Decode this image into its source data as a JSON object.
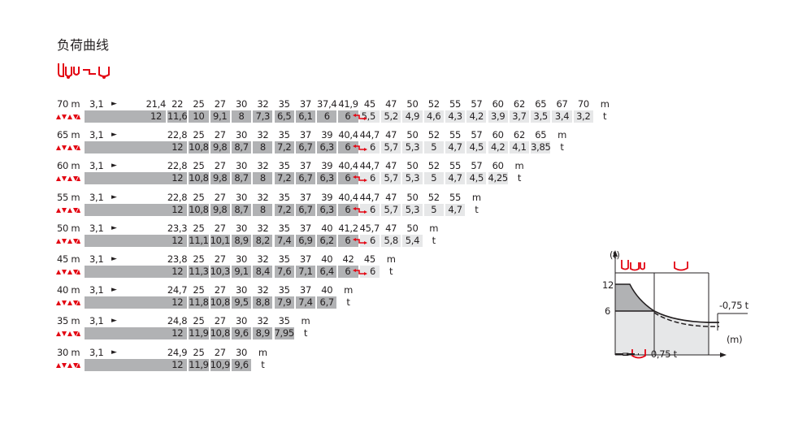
{
  "title": "负荷曲线",
  "colors": {
    "dark_cell": "#b1b2b4",
    "light_cell": "#e6e7e8",
    "accent_red": "#e30613"
  },
  "header_icon": "counterweight-switch-icon",
  "row_icon": "counterweight-triangles-icon",
  "arrow_symbol": "►",
  "units": {
    "distance": "m",
    "load": "t"
  },
  "rows": [
    {
      "label": "70 m",
      "min": "3,1",
      "dark_count": 10,
      "distances": [
        "21,4",
        "22",
        "25",
        "27",
        "30",
        "32",
        "35",
        "37",
        "37,4",
        "41,9",
        "45",
        "47",
        "50",
        "52",
        "55",
        "57",
        "60",
        "62",
        "65",
        "67",
        "70"
      ],
      "loads": [
        "12",
        "11,6",
        "10",
        "9,1",
        "8",
        "7,3",
        "6,5",
        "6,1",
        "6",
        "6",
        "5,5",
        "5,2",
        "4,9",
        "4,6",
        "4,3",
        "4,2",
        "3,9",
        "3,7",
        "3,5",
        "3,4",
        "3,2"
      ]
    },
    {
      "label": "65 m",
      "min": "3,1",
      "dark_count": 9,
      "distances": [
        "22,8",
        "25",
        "27",
        "30",
        "32",
        "35",
        "37",
        "39",
        "40,4",
        "44,7",
        "47",
        "50",
        "52",
        "55",
        "57",
        "60",
        "62",
        "65"
      ],
      "loads": [
        "12",
        "10,8",
        "9,8",
        "8,7",
        "8",
        "7,2",
        "6,7",
        "6,3",
        "6",
        "6",
        "5,7",
        "5,3",
        "5",
        "4,7",
        "4,5",
        "4,2",
        "4,1",
        "3,85"
      ]
    },
    {
      "label": "60 m",
      "min": "3,1",
      "dark_count": 9,
      "distances": [
        "22,8",
        "25",
        "27",
        "30",
        "32",
        "35",
        "37",
        "39",
        "40,4",
        "44,7",
        "47",
        "50",
        "52",
        "55",
        "57",
        "60"
      ],
      "loads": [
        "12",
        "10,8",
        "9,8",
        "8,7",
        "8",
        "7,2",
        "6,7",
        "6,3",
        "6",
        "6",
        "5,7",
        "5,3",
        "5",
        "4,7",
        "4,5",
        "4,25"
      ]
    },
    {
      "label": "55 m",
      "min": "3,1",
      "dark_count": 9,
      "distances": [
        "22,8",
        "25",
        "27",
        "30",
        "32",
        "35",
        "37",
        "39",
        "40,4",
        "44,7",
        "47",
        "50",
        "52",
        "55"
      ],
      "loads": [
        "12",
        "10,8",
        "9,8",
        "8,7",
        "8",
        "7,2",
        "6,7",
        "6,3",
        "6",
        "6",
        "5,7",
        "5,3",
        "5",
        "4,7"
      ]
    },
    {
      "label": "50 m",
      "min": "3,1",
      "dark_count": 9,
      "distances": [
        "23,3",
        "25",
        "27",
        "30",
        "32",
        "35",
        "37",
        "40",
        "41,2",
        "45,7",
        "47",
        "50"
      ],
      "loads": [
        "12",
        "11,1",
        "10,1",
        "8,9",
        "8,2",
        "7,4",
        "6,9",
        "6,2",
        "6",
        "6",
        "5,8",
        "5,4"
      ]
    },
    {
      "label": "45 m",
      "min": "3,1",
      "dark_count": 9,
      "distances": [
        "23,8",
        "25",
        "27",
        "30",
        "32",
        "35",
        "37",
        "40",
        "42",
        "45"
      ],
      "loads": [
        "12",
        "11,3",
        "10,3",
        "9,1",
        "8,4",
        "7,6",
        "7,1",
        "6,4",
        "6",
        "6"
      ]
    },
    {
      "label": "40 m",
      "min": "3,1",
      "dark_count": 8,
      "distances": [
        "24,7",
        "25",
        "27",
        "30",
        "32",
        "35",
        "37",
        "40"
      ],
      "loads": [
        "12",
        "11,8",
        "10,8",
        "9,5",
        "8,8",
        "7,9",
        "7,4",
        "6,7"
      ]
    },
    {
      "label": "35 m",
      "min": "3,1",
      "dark_count": 6,
      "distances": [
        "24,8",
        "25",
        "27",
        "30",
        "32",
        "35"
      ],
      "loads": [
        "12",
        "11,9",
        "10,8",
        "9,6",
        "8,9",
        "7,95"
      ]
    },
    {
      "label": "30 m",
      "min": "3,1",
      "dark_count": 4,
      "distances": [
        "24,9",
        "25",
        "27",
        "30"
      ],
      "loads": [
        "12",
        "11,9",
        "10,9",
        "9,6"
      ]
    }
  ],
  "diagram": {
    "y_unit": "(t)",
    "x_unit": "(m)",
    "y_ticks": [
      "12",
      "6"
    ],
    "reduction_label": "-0,75 t",
    "legend_equals": "=",
    "legend_label": "-0,75 t"
  }
}
